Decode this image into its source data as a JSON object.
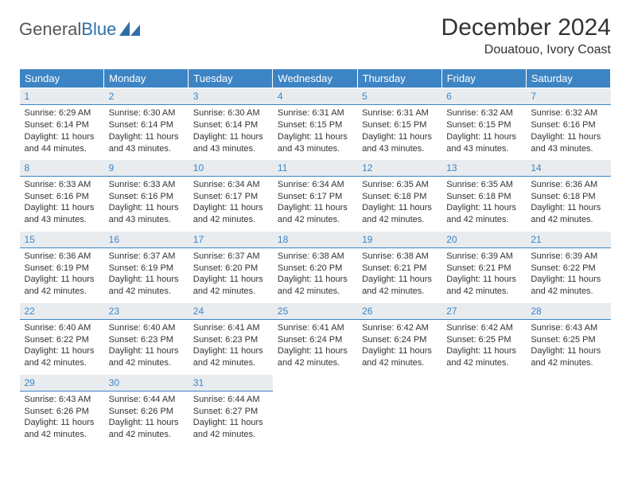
{
  "brand": {
    "part1": "General",
    "part2": "Blue"
  },
  "title": "December 2024",
  "location": "Douatouo, Ivory Coast",
  "colors": {
    "header_bg": "#3d84c4",
    "header_text": "#ffffff",
    "daynum_bg": "#e8ecef",
    "daynum_text": "#3d84c4",
    "daynum_border": "#3d84c4",
    "body_text": "#333333"
  },
  "weekdays": [
    "Sunday",
    "Monday",
    "Tuesday",
    "Wednesday",
    "Thursday",
    "Friday",
    "Saturday"
  ],
  "start_offset": 0,
  "days": [
    {
      "n": 1,
      "sunrise": "6:29 AM",
      "sunset": "6:14 PM",
      "daylight": "11 hours and 44 minutes."
    },
    {
      "n": 2,
      "sunrise": "6:30 AM",
      "sunset": "6:14 PM",
      "daylight": "11 hours and 43 minutes."
    },
    {
      "n": 3,
      "sunrise": "6:30 AM",
      "sunset": "6:14 PM",
      "daylight": "11 hours and 43 minutes."
    },
    {
      "n": 4,
      "sunrise": "6:31 AM",
      "sunset": "6:15 PM",
      "daylight": "11 hours and 43 minutes."
    },
    {
      "n": 5,
      "sunrise": "6:31 AM",
      "sunset": "6:15 PM",
      "daylight": "11 hours and 43 minutes."
    },
    {
      "n": 6,
      "sunrise": "6:32 AM",
      "sunset": "6:15 PM",
      "daylight": "11 hours and 43 minutes."
    },
    {
      "n": 7,
      "sunrise": "6:32 AM",
      "sunset": "6:16 PM",
      "daylight": "11 hours and 43 minutes."
    },
    {
      "n": 8,
      "sunrise": "6:33 AM",
      "sunset": "6:16 PM",
      "daylight": "11 hours and 43 minutes."
    },
    {
      "n": 9,
      "sunrise": "6:33 AM",
      "sunset": "6:16 PM",
      "daylight": "11 hours and 43 minutes."
    },
    {
      "n": 10,
      "sunrise": "6:34 AM",
      "sunset": "6:17 PM",
      "daylight": "11 hours and 42 minutes."
    },
    {
      "n": 11,
      "sunrise": "6:34 AM",
      "sunset": "6:17 PM",
      "daylight": "11 hours and 42 minutes."
    },
    {
      "n": 12,
      "sunrise": "6:35 AM",
      "sunset": "6:18 PM",
      "daylight": "11 hours and 42 minutes."
    },
    {
      "n": 13,
      "sunrise": "6:35 AM",
      "sunset": "6:18 PM",
      "daylight": "11 hours and 42 minutes."
    },
    {
      "n": 14,
      "sunrise": "6:36 AM",
      "sunset": "6:18 PM",
      "daylight": "11 hours and 42 minutes."
    },
    {
      "n": 15,
      "sunrise": "6:36 AM",
      "sunset": "6:19 PM",
      "daylight": "11 hours and 42 minutes."
    },
    {
      "n": 16,
      "sunrise": "6:37 AM",
      "sunset": "6:19 PM",
      "daylight": "11 hours and 42 minutes."
    },
    {
      "n": 17,
      "sunrise": "6:37 AM",
      "sunset": "6:20 PM",
      "daylight": "11 hours and 42 minutes."
    },
    {
      "n": 18,
      "sunrise": "6:38 AM",
      "sunset": "6:20 PM",
      "daylight": "11 hours and 42 minutes."
    },
    {
      "n": 19,
      "sunrise": "6:38 AM",
      "sunset": "6:21 PM",
      "daylight": "11 hours and 42 minutes."
    },
    {
      "n": 20,
      "sunrise": "6:39 AM",
      "sunset": "6:21 PM",
      "daylight": "11 hours and 42 minutes."
    },
    {
      "n": 21,
      "sunrise": "6:39 AM",
      "sunset": "6:22 PM",
      "daylight": "11 hours and 42 minutes."
    },
    {
      "n": 22,
      "sunrise": "6:40 AM",
      "sunset": "6:22 PM",
      "daylight": "11 hours and 42 minutes."
    },
    {
      "n": 23,
      "sunrise": "6:40 AM",
      "sunset": "6:23 PM",
      "daylight": "11 hours and 42 minutes."
    },
    {
      "n": 24,
      "sunrise": "6:41 AM",
      "sunset": "6:23 PM",
      "daylight": "11 hours and 42 minutes."
    },
    {
      "n": 25,
      "sunrise": "6:41 AM",
      "sunset": "6:24 PM",
      "daylight": "11 hours and 42 minutes."
    },
    {
      "n": 26,
      "sunrise": "6:42 AM",
      "sunset": "6:24 PM",
      "daylight": "11 hours and 42 minutes."
    },
    {
      "n": 27,
      "sunrise": "6:42 AM",
      "sunset": "6:25 PM",
      "daylight": "11 hours and 42 minutes."
    },
    {
      "n": 28,
      "sunrise": "6:43 AM",
      "sunset": "6:25 PM",
      "daylight": "11 hours and 42 minutes."
    },
    {
      "n": 29,
      "sunrise": "6:43 AM",
      "sunset": "6:26 PM",
      "daylight": "11 hours and 42 minutes."
    },
    {
      "n": 30,
      "sunrise": "6:44 AM",
      "sunset": "6:26 PM",
      "daylight": "11 hours and 42 minutes."
    },
    {
      "n": 31,
      "sunrise": "6:44 AM",
      "sunset": "6:27 PM",
      "daylight": "11 hours and 42 minutes."
    }
  ],
  "labels": {
    "sunrise": "Sunrise: ",
    "sunset": "Sunset: ",
    "daylight": "Daylight: "
  }
}
